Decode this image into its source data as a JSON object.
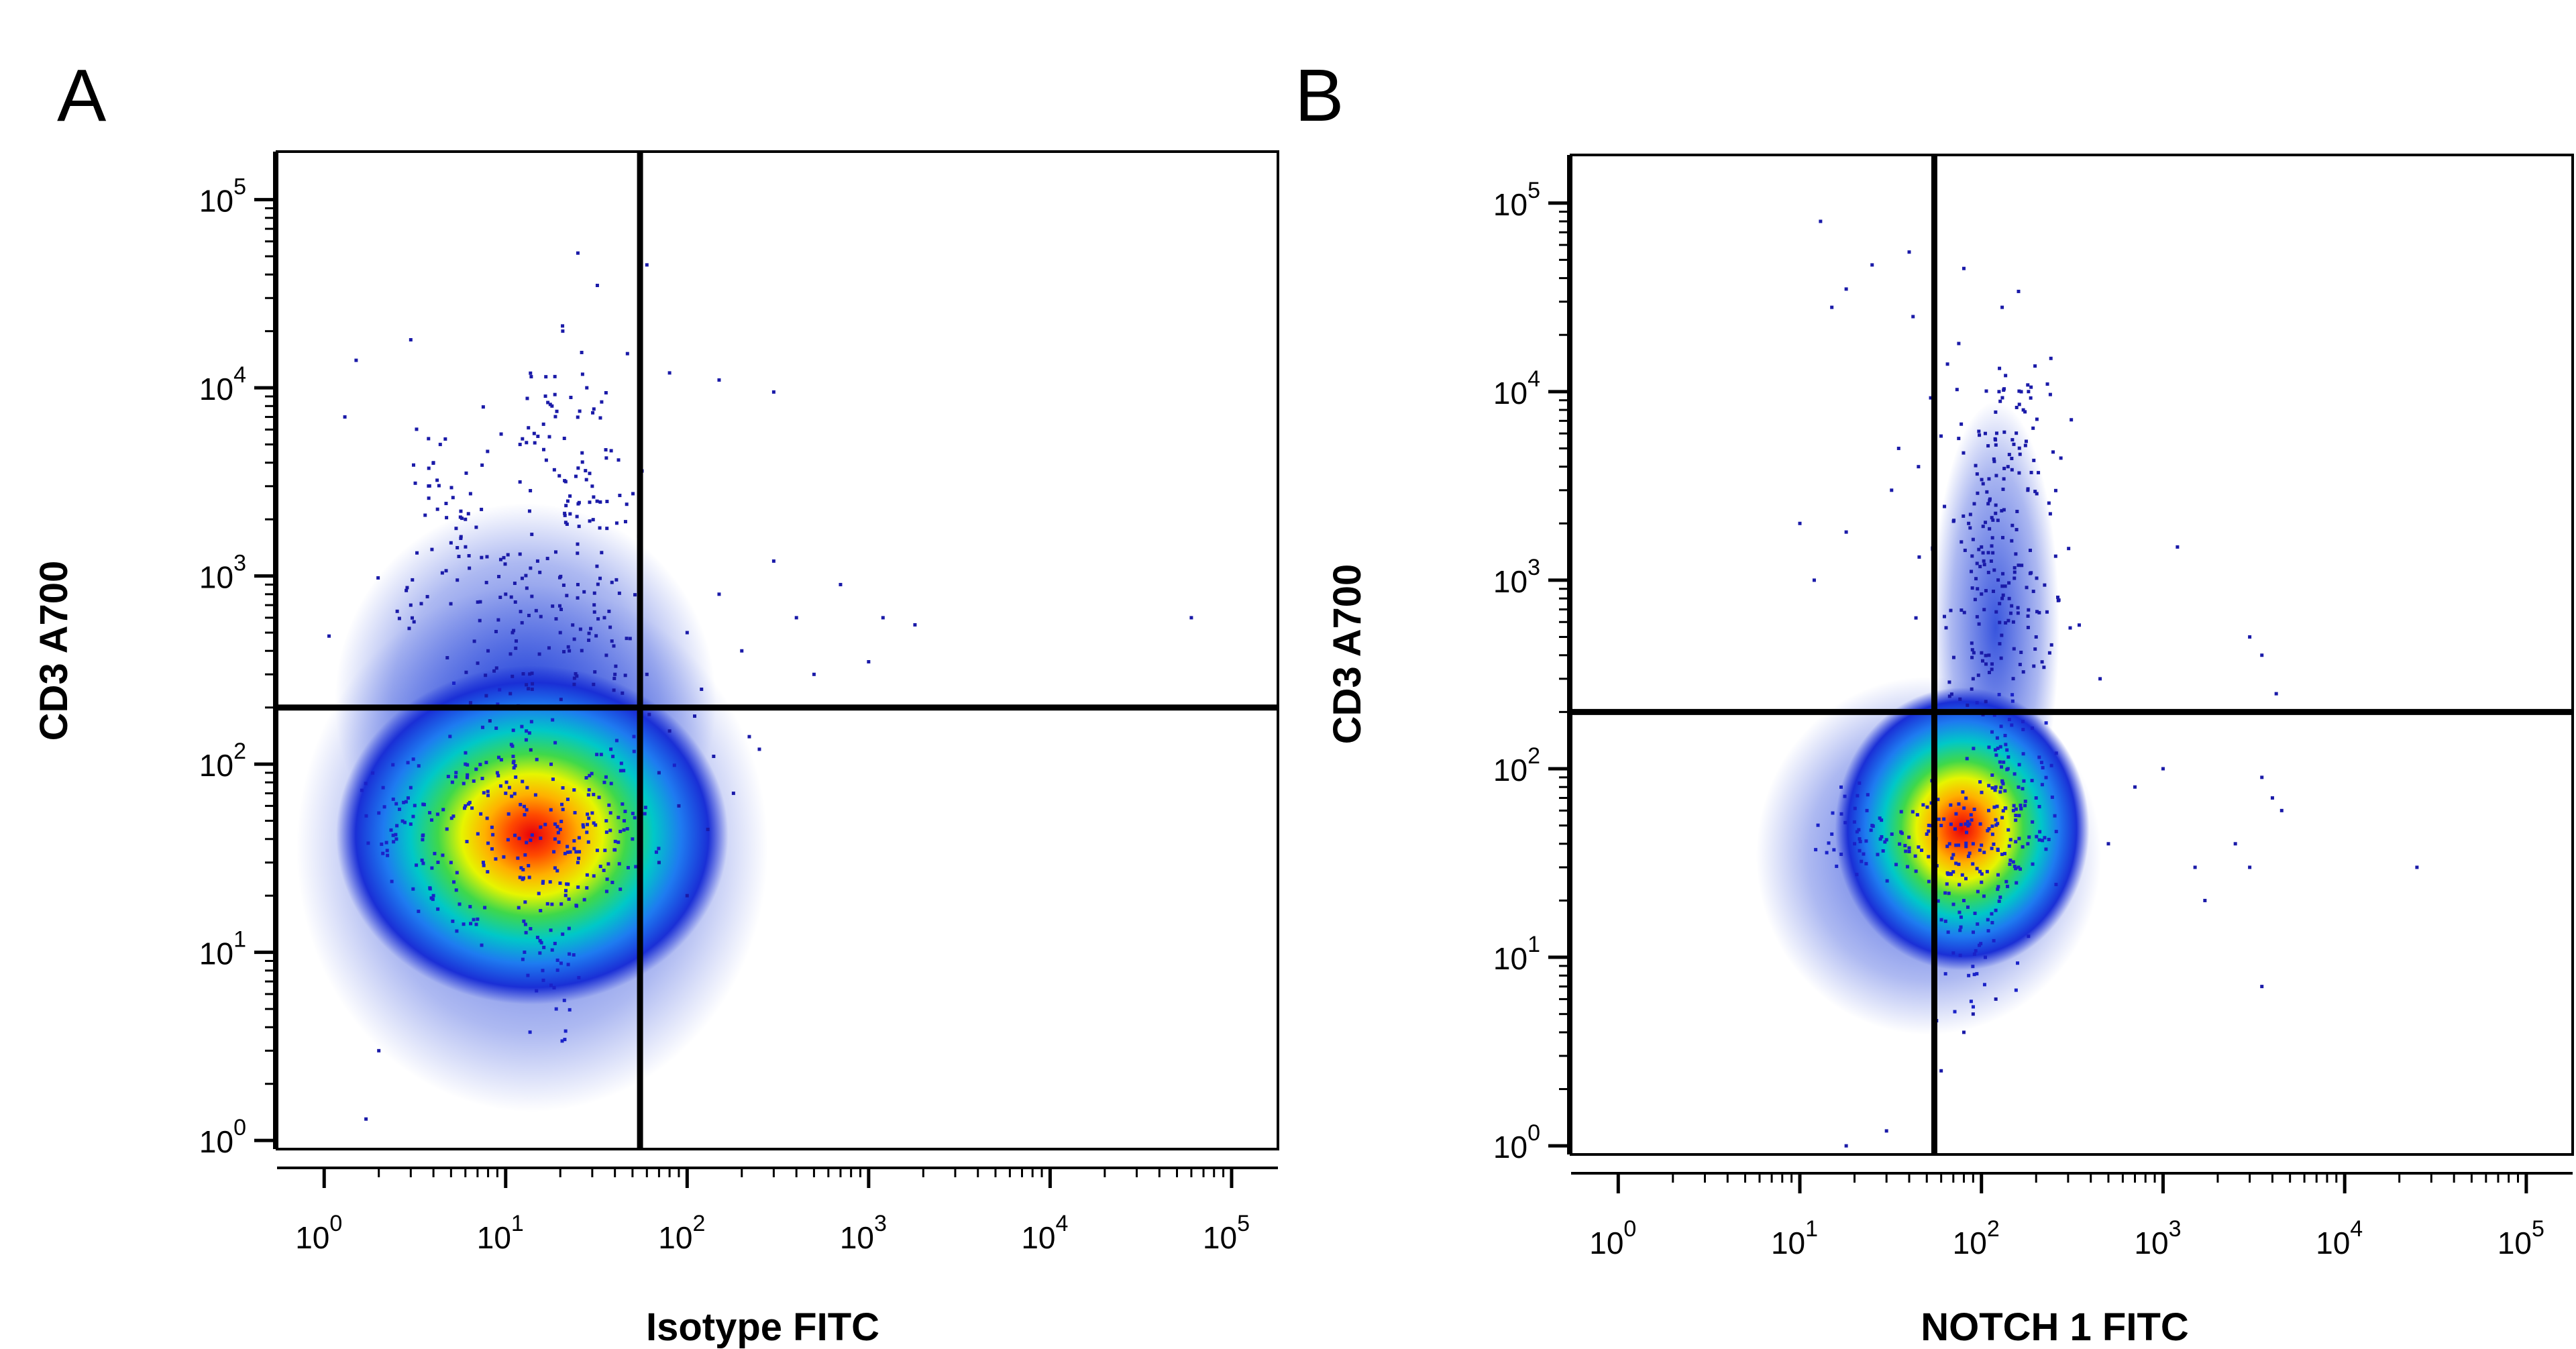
{
  "chart_data": [
    {
      "type": "scatter",
      "panel_label": "A",
      "xlabel": "Isotype FITC",
      "ylabel": "CD3 A700",
      "x_scale": "log",
      "y_scale": "log",
      "xlim": [
        0.55,
        180000
      ],
      "ylim": [
        0.9,
        180000
      ],
      "x_ticks": [
        {
          "base": "10",
          "exp": "0",
          "value": 1
        },
        {
          "base": "10",
          "exp": "1",
          "value": 10
        },
        {
          "base": "10",
          "exp": "2",
          "value": 100
        },
        {
          "base": "10",
          "exp": "3",
          "value": 1000
        },
        {
          "base": "10",
          "exp": "4",
          "value": 10000
        },
        {
          "base": "10",
          "exp": "5",
          "value": 100000
        }
      ],
      "y_ticks": [
        {
          "base": "10",
          "exp": "0",
          "value": 1
        },
        {
          "base": "10",
          "exp": "1",
          "value": 10
        },
        {
          "base": "10",
          "exp": "2",
          "value": 100
        },
        {
          "base": "10",
          "exp": "3",
          "value": 1000
        },
        {
          "base": "10",
          "exp": "4",
          "value": 10000
        },
        {
          "base": "10",
          "exp": "5",
          "value": 100000
        }
      ],
      "quadrant_gate": {
        "x": 55,
        "y": 200
      },
      "density_centroid": {
        "x": 14,
        "y": 42
      },
      "points_main": [
        [
          14,
          42
        ],
        [
          8,
          38
        ],
        [
          20,
          45
        ],
        [
          5,
          30
        ],
        [
          30,
          55
        ],
        [
          12,
          25
        ],
        [
          3,
          48
        ],
        [
          40,
          35
        ],
        [
          10,
          70
        ],
        [
          18,
          18
        ],
        [
          6,
          60
        ],
        [
          25,
          30
        ],
        [
          2.5,
          40
        ],
        [
          45,
          50
        ],
        [
          15,
          12
        ],
        [
          9,
          90
        ],
        [
          35,
          80
        ],
        [
          4,
          20
        ],
        [
          22,
          65
        ],
        [
          7,
          15
        ],
        [
          28,
          22
        ],
        [
          11,
          110
        ],
        [
          16,
          8
        ],
        [
          3,
          75
        ],
        [
          50,
          40
        ],
        [
          13,
          150
        ],
        [
          19,
          5
        ],
        [
          6,
          100
        ],
        [
          38,
          120
        ],
        [
          2,
          55
        ]
      ],
      "points_upper": [
        [
          10,
          800
        ],
        [
          15,
          1200
        ],
        [
          20,
          500
        ],
        [
          6,
          2000
        ],
        [
          25,
          900
        ],
        [
          30,
          3000
        ],
        [
          8,
          400
        ],
        [
          35,
          600
        ],
        [
          12,
          5000
        ],
        [
          5,
          1500
        ],
        [
          18,
          8000
        ],
        [
          40,
          300
        ],
        [
          3,
          700
        ],
        [
          28,
          10000
        ],
        [
          14,
          250
        ],
        [
          22,
          2500
        ],
        [
          4,
          4000
        ],
        [
          33,
          1800
        ]
      ],
      "points_sparse": [
        [
          60,
          300
        ],
        [
          80,
          150
        ],
        [
          100,
          500
        ],
        [
          120,
          250
        ],
        [
          150,
          800
        ],
        [
          200,
          400
        ],
        [
          250,
          120
        ],
        [
          300,
          1200
        ],
        [
          400,
          600
        ],
        [
          500,
          300
        ],
        [
          700,
          900
        ],
        [
          1000,
          350
        ],
        [
          1200,
          600
        ],
        [
          1800,
          550
        ],
        [
          60000,
          600
        ],
        [
          70,
          90
        ],
        [
          90,
          60
        ],
        [
          110,
          180
        ],
        [
          140,
          110
        ],
        [
          180,
          70
        ],
        [
          220,
          140
        ],
        [
          80,
          12000
        ],
        [
          150,
          11000
        ],
        [
          300,
          9500
        ],
        [
          25,
          52000
        ],
        [
          32,
          35000
        ],
        [
          60,
          45000
        ],
        [
          1.5,
          14000
        ],
        [
          3,
          18000
        ],
        [
          1.3,
          7000
        ],
        [
          2,
          3
        ],
        [
          1.7,
          1.3
        ],
        [
          70,
          30
        ],
        [
          100,
          20
        ],
        [
          130,
          45
        ]
      ]
    },
    {
      "type": "scatter",
      "panel_label": "B",
      "xlabel": "NOTCH 1 FITC",
      "ylabel": "CD3 A700",
      "x_scale": "log",
      "y_scale": "log",
      "xlim": [
        0.55,
        180000
      ],
      "ylim": [
        0.9,
        180000
      ],
      "x_ticks": [
        {
          "base": "10",
          "exp": "0",
          "value": 1
        },
        {
          "base": "10",
          "exp": "1",
          "value": 10
        },
        {
          "base": "10",
          "exp": "2",
          "value": 100
        },
        {
          "base": "10",
          "exp": "3",
          "value": 1000
        },
        {
          "base": "10",
          "exp": "4",
          "value": 10000
        },
        {
          "base": "10",
          "exp": "5",
          "value": 100000
        }
      ],
      "y_ticks": [
        {
          "base": "10",
          "exp": "0",
          "value": 1
        },
        {
          "base": "10",
          "exp": "1",
          "value": 10
        },
        {
          "base": "10",
          "exp": "2",
          "value": 100
        },
        {
          "base": "10",
          "exp": "3",
          "value": 1000
        },
        {
          "base": "10",
          "exp": "4",
          "value": 10000
        },
        {
          "base": "10",
          "exp": "5",
          "value": 100000
        }
      ],
      "quadrant_gate": {
        "x": 55,
        "y": 200
      },
      "density_centroid": {
        "x": 110,
        "y": 48
      },
      "points_main": [
        [
          110,
          48
        ],
        [
          90,
          40
        ],
        [
          130,
          55
        ],
        [
          70,
          35
        ],
        [
          150,
          60
        ],
        [
          100,
          25
        ],
        [
          60,
          50
        ],
        [
          180,
          40
        ],
        [
          120,
          80
        ],
        [
          80,
          20
        ],
        [
          50,
          45
        ],
        [
          140,
          100
        ],
        [
          40,
          38
        ],
        [
          95,
          15
        ],
        [
          160,
          30
        ],
        [
          30,
          42
        ],
        [
          110,
          130
        ],
        [
          75,
          65
        ],
        [
          25,
          50
        ],
        [
          200,
          70
        ],
        [
          105,
          10
        ],
        [
          65,
          28
        ],
        [
          20,
          40
        ],
        [
          135,
          150
        ],
        [
          85,
          8
        ],
        [
          15,
          45
        ],
        [
          170,
          120
        ]
      ],
      "points_upper": [
        [
          110,
          400
        ],
        [
          130,
          800
        ],
        [
          100,
          1500
        ],
        [
          150,
          600
        ],
        [
          120,
          2500
        ],
        [
          90,
          300
        ],
        [
          160,
          1200
        ],
        [
          140,
          4000
        ],
        [
          105,
          6000
        ],
        [
          125,
          10000
        ],
        [
          180,
          3000
        ],
        [
          95,
          900
        ],
        [
          200,
          500
        ],
        [
          85,
          2000
        ],
        [
          170,
          8000
        ]
      ],
      "points_sparse": [
        [
          13,
          80000
        ],
        [
          15,
          28000
        ],
        [
          18,
          35000
        ],
        [
          25,
          47000
        ],
        [
          40,
          55000
        ],
        [
          42,
          25000
        ],
        [
          55,
          40000
        ],
        [
          75,
          18000
        ],
        [
          65,
          14000
        ],
        [
          80,
          45000
        ],
        [
          130,
          28000
        ],
        [
          160,
          34000
        ],
        [
          35,
          5000
        ],
        [
          45,
          4000
        ],
        [
          32,
          3000
        ],
        [
          10,
          2000
        ],
        [
          18,
          1800
        ],
        [
          12,
          1000
        ],
        [
          1200,
          1500
        ],
        [
          3000,
          500
        ],
        [
          3500,
          400
        ],
        [
          450,
          300
        ],
        [
          3500,
          90
        ],
        [
          4000,
          70
        ],
        [
          4500,
          60
        ],
        [
          2500,
          40
        ],
        [
          3000,
          30
        ],
        [
          1500,
          30
        ],
        [
          25000,
          30
        ],
        [
          1700,
          20
        ],
        [
          3500,
          7
        ],
        [
          80,
          4
        ],
        [
          60,
          2.5
        ],
        [
          30,
          1.2
        ],
        [
          18,
          1
        ],
        [
          4200,
          250
        ],
        [
          500,
          40
        ],
        [
          1000,
          100
        ],
        [
          700,
          80
        ],
        [
          90,
          5
        ],
        [
          120,
          6
        ]
      ]
    }
  ]
}
